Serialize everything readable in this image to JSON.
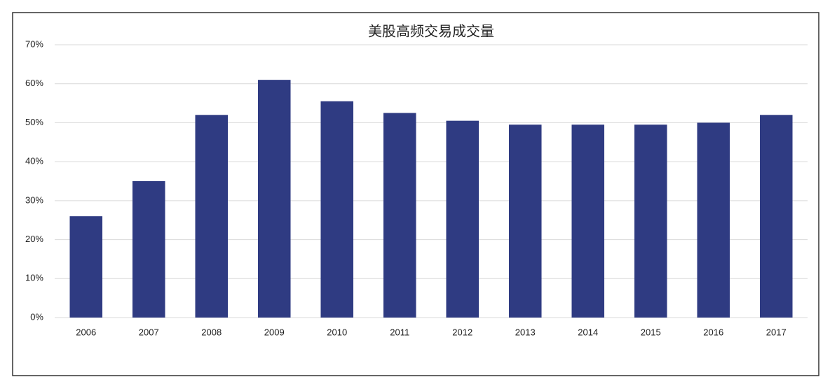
{
  "chart_data": {
    "type": "bar",
    "title": "美股高频交易成交量",
    "categories": [
      "2006",
      "2007",
      "2008",
      "2009",
      "2010",
      "2011",
      "2012",
      "2013",
      "2014",
      "2015",
      "2016",
      "2017"
    ],
    "values": [
      26,
      35,
      52,
      61,
      55.5,
      52.5,
      50.5,
      49.5,
      49.5,
      49.5,
      50,
      52
    ],
    "color": "#2f3b82",
    "ylim": [
      0,
      70
    ],
    "yticks": [
      {
        "value": 0,
        "label": "0%"
      },
      {
        "value": 10,
        "label": "10%"
      },
      {
        "value": 20,
        "label": "20%"
      },
      {
        "value": 30,
        "label": "30%"
      },
      {
        "value": 40,
        "label": "40%"
      },
      {
        "value": 50,
        "label": "50%"
      },
      {
        "value": 60,
        "label": "60%"
      },
      {
        "value": 70,
        "label": "70%"
      }
    ],
    "grid": true
  }
}
